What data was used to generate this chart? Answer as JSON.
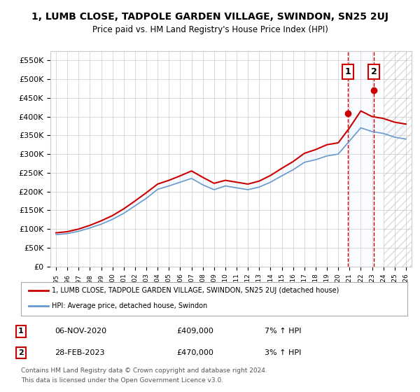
{
  "title": "1, LUMB CLOSE, TADPOLE GARDEN VILLAGE, SWINDON, SN25 2UJ",
  "subtitle": "Price paid vs. HM Land Registry's House Price Index (HPI)",
  "xlabel": "",
  "ylabel": "",
  "ylim": [
    0,
    575000
  ],
  "yticks": [
    0,
    50000,
    100000,
    150000,
    200000,
    250000,
    300000,
    350000,
    400000,
    450000,
    500000,
    550000
  ],
  "ytick_labels": [
    "£0",
    "£50K",
    "£100K",
    "£150K",
    "£200K",
    "£250K",
    "£300K",
    "£350K",
    "£400K",
    "£450K",
    "£500K",
    "£550K"
  ],
  "x_years": [
    1995,
    1996,
    1997,
    1998,
    1999,
    2000,
    2001,
    2002,
    2003,
    2004,
    2005,
    2006,
    2007,
    2008,
    2009,
    2010,
    2011,
    2012,
    2013,
    2014,
    2015,
    2016,
    2017,
    2018,
    2019,
    2020,
    2021,
    2022,
    2023,
    2024,
    2025,
    2026
  ],
  "hpi_values": [
    85000,
    88000,
    94000,
    103000,
    113000,
    126000,
    142000,
    162000,
    182000,
    206000,
    215000,
    225000,
    235000,
    218000,
    205000,
    215000,
    210000,
    205000,
    212000,
    225000,
    242000,
    258000,
    278000,
    285000,
    295000,
    300000,
    335000,
    370000,
    360000,
    355000,
    345000,
    340000
  ],
  "property_values": [
    90000,
    93000,
    100000,
    110000,
    122000,
    136000,
    154000,
    175000,
    197000,
    220000,
    230000,
    242000,
    255000,
    238000,
    222000,
    230000,
    225000,
    220000,
    228000,
    243000,
    262000,
    280000,
    302000,
    312000,
    325000,
    330000,
    370000,
    415000,
    400000,
    395000,
    385000,
    380000
  ],
  "line_color_red": "#cc0000",
  "line_color_blue": "#6699cc",
  "fill_color": "#ddeeff",
  "transaction1_year": 2020.85,
  "transaction1_value": 409000,
  "transaction1_label": "1",
  "transaction1_date": "06-NOV-2020",
  "transaction1_hpi_pct": "7%",
  "transaction2_year": 2023.15,
  "transaction2_value": 470000,
  "transaction2_label": "2",
  "transaction2_date": "28-FEB-2023",
  "transaction2_hpi_pct": "3%",
  "legend_line1": "1, LUMB CLOSE, TADPOLE GARDEN VILLAGE, SWINDON, SN25 2UJ (detached house)",
  "legend_line2": "HPI: Average price, detached house, Swindon",
  "footer1": "Contains HM Land Registry data © Crown copyright and database right 2024.",
  "footer2": "This data is licensed under the Open Government Licence v3.0.",
  "bg_color": "#ffffff",
  "grid_color": "#cccccc",
  "highlight_color": "#ddeeff"
}
